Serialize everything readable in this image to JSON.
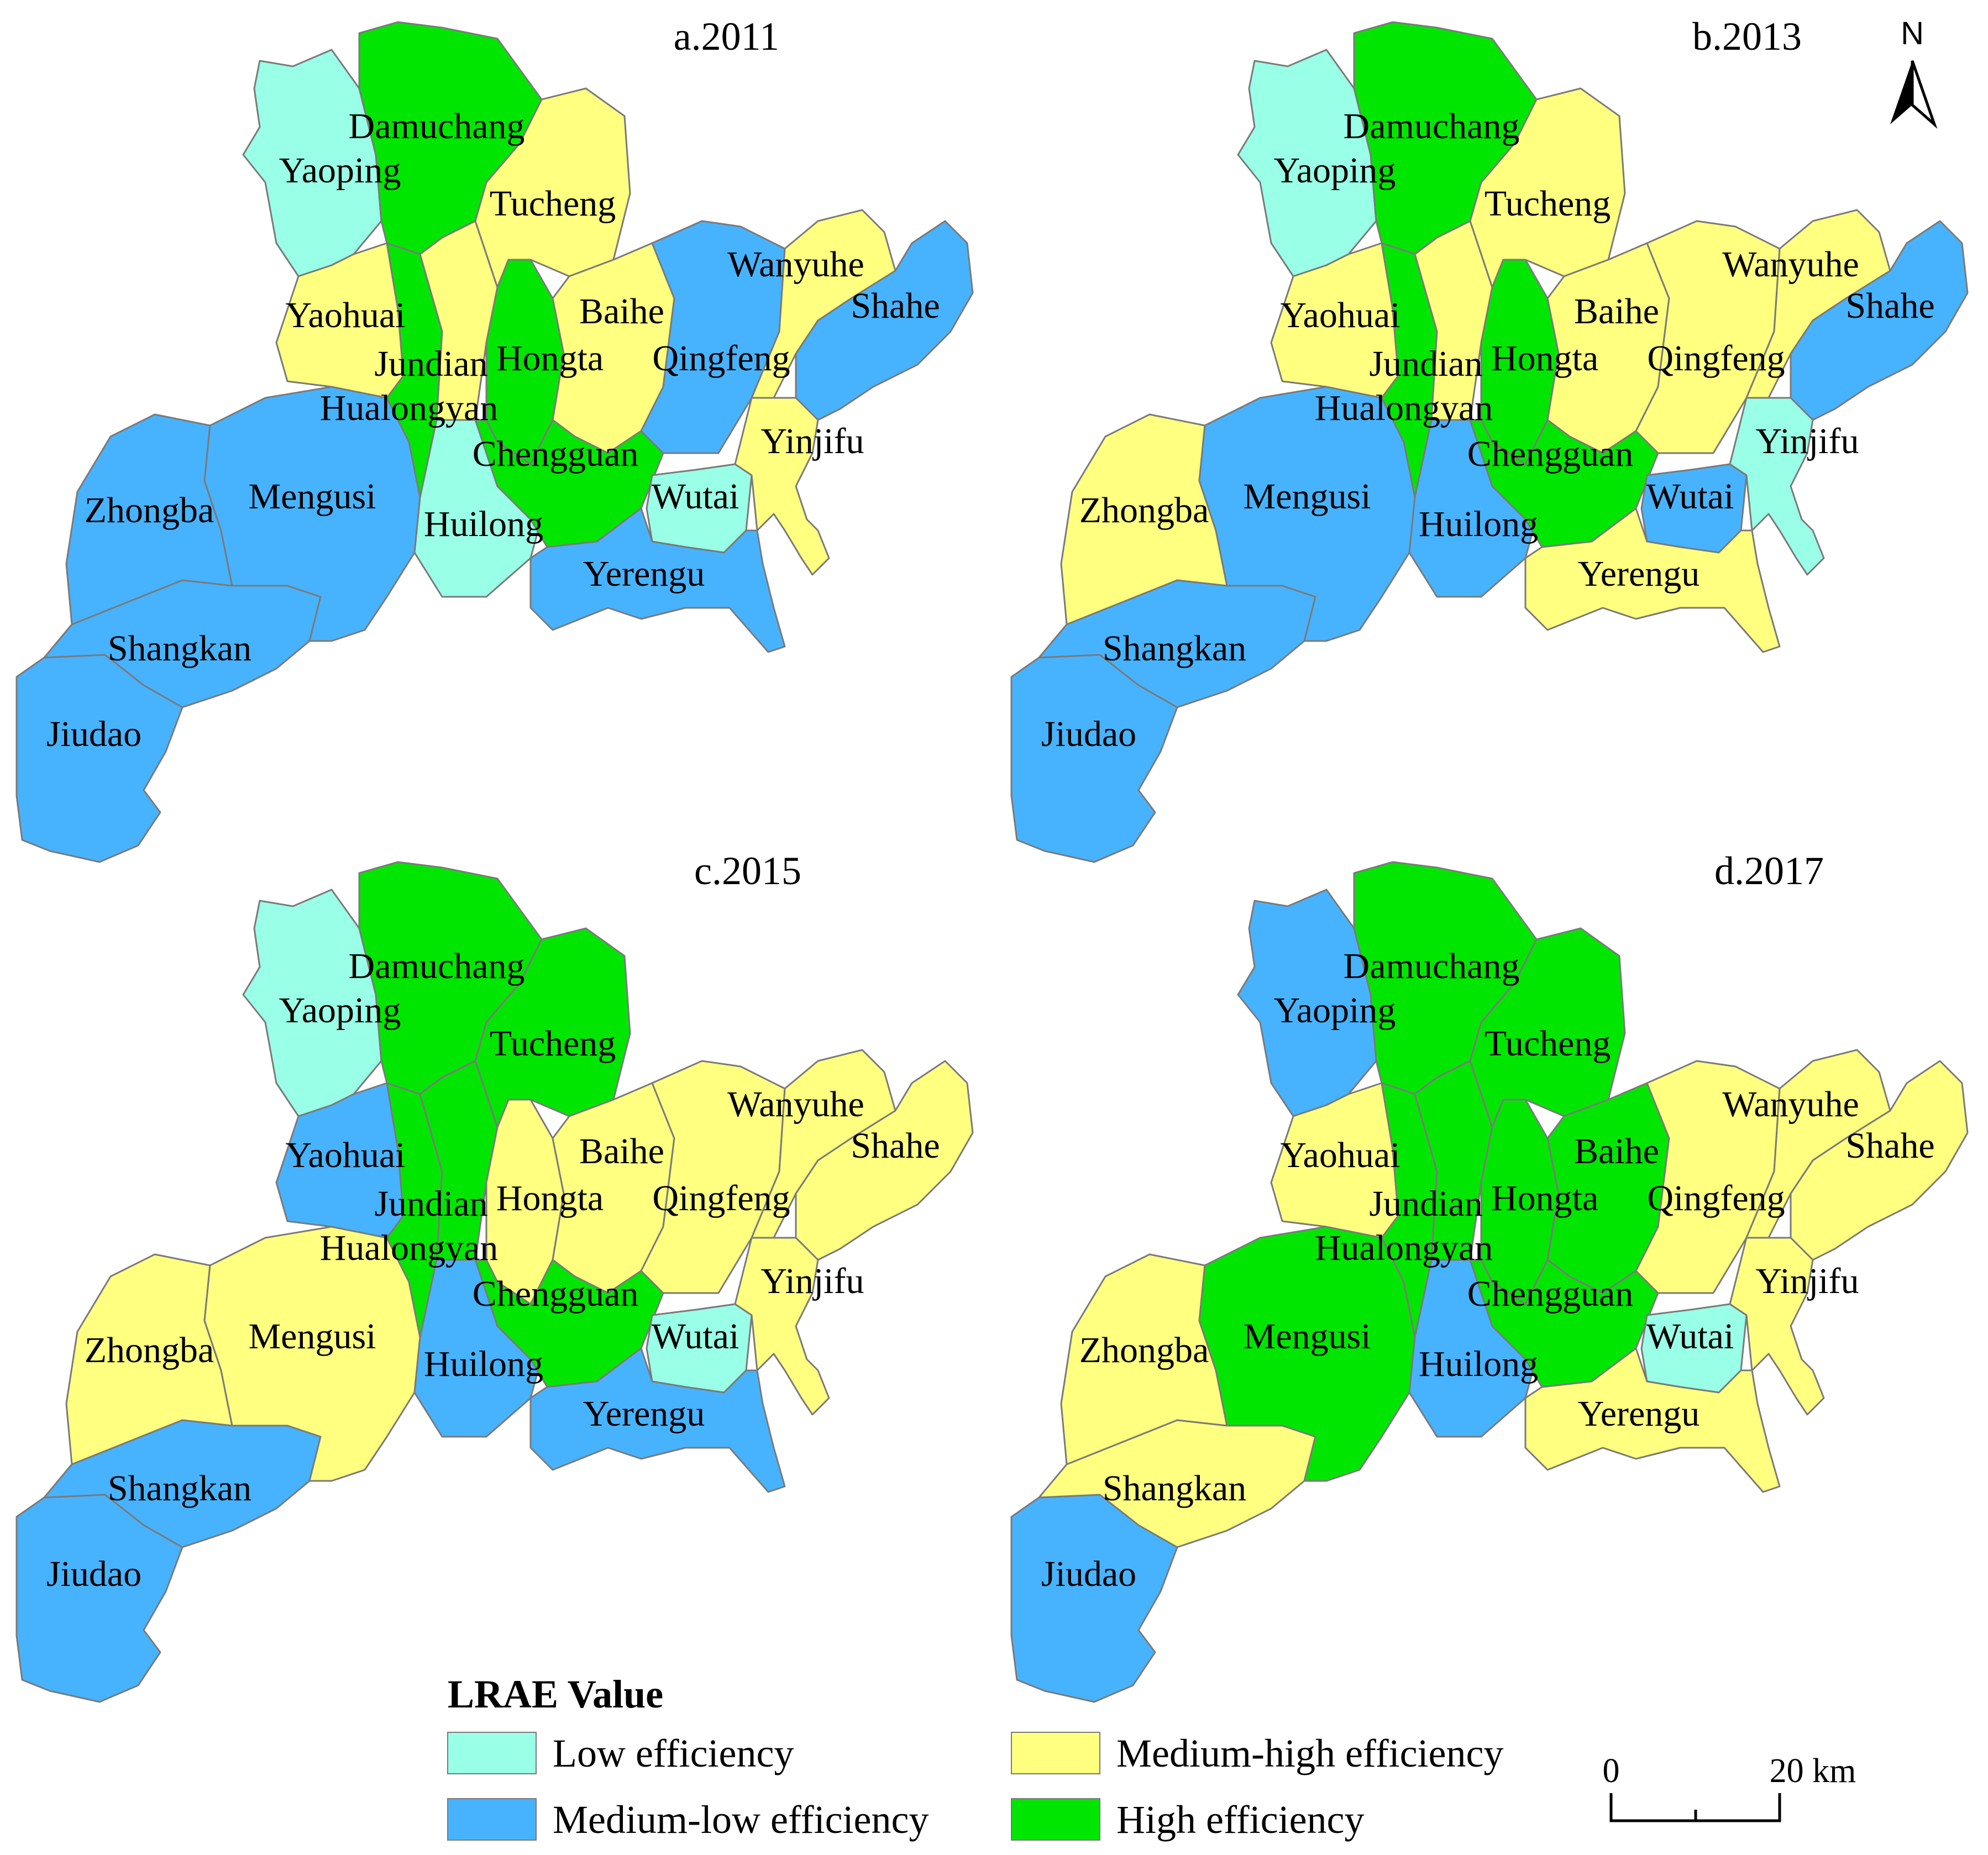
{
  "legend": {
    "title": "LRAE Value",
    "classes": [
      {
        "key": "low",
        "label": "Low efficiency",
        "color": "#99FFE6"
      },
      {
        "key": "medlow",
        "label": "Medium-low efficiency",
        "color": "#47B3FF"
      },
      {
        "key": "medhigh",
        "label": "Medium-high efficiency",
        "color": "#FFFF80"
      },
      {
        "key": "high",
        "label": "High efficiency",
        "color": "#00E600"
      }
    ]
  },
  "north_arrow": {
    "label": "N"
  },
  "scale_bar": {
    "start_label": "0",
    "end_label": "20 km"
  },
  "panels": [
    {
      "title": "a.2011",
      "classes": {
        "Damuchang": "high",
        "Yaoping": "low",
        "Tucheng": "medhigh",
        "Wanyuhe": "medhigh",
        "Shahe": "medlow",
        "Yaohuai": "medhigh",
        "Baihe": "medhigh",
        "Jundian": "high",
        "Hongta": "high",
        "Qingfeng": "medlow",
        "Hualongyan": "medhigh",
        "Chengguan": "high",
        "Yinjifu": "medhigh",
        "Zhongba": "medlow",
        "Mengusi": "medlow",
        "Huilong": "low",
        "Wutai": "low",
        "Yerengu": "medlow",
        "Shangkan": "medlow",
        "Jiudao": "medlow"
      }
    },
    {
      "title": "b.2013",
      "classes": {
        "Damuchang": "high",
        "Yaoping": "low",
        "Tucheng": "medhigh",
        "Wanyuhe": "medhigh",
        "Shahe": "medlow",
        "Yaohuai": "medhigh",
        "Baihe": "medhigh",
        "Jundian": "high",
        "Hongta": "high",
        "Qingfeng": "medhigh",
        "Hualongyan": "medhigh",
        "Chengguan": "high",
        "Yinjifu": "low",
        "Zhongba": "medhigh",
        "Mengusi": "medlow",
        "Huilong": "medlow",
        "Wutai": "medlow",
        "Yerengu": "medhigh",
        "Shangkan": "medlow",
        "Jiudao": "medlow"
      }
    },
    {
      "title": "c.2015",
      "classes": {
        "Damuchang": "high",
        "Yaoping": "low",
        "Tucheng": "high",
        "Wanyuhe": "medhigh",
        "Shahe": "medhigh",
        "Yaohuai": "medlow",
        "Baihe": "medhigh",
        "Jundian": "high",
        "Hongta": "medhigh",
        "Qingfeng": "medhigh",
        "Hualongyan": "high",
        "Chengguan": "high",
        "Yinjifu": "medhigh",
        "Zhongba": "medhigh",
        "Mengusi": "medhigh",
        "Huilong": "medlow",
        "Wutai": "low",
        "Yerengu": "medlow",
        "Shangkan": "medlow",
        "Jiudao": "medlow"
      }
    },
    {
      "title": "d.2017",
      "classes": {
        "Damuchang": "high",
        "Yaoping": "medlow",
        "Tucheng": "high",
        "Wanyuhe": "medhigh",
        "Shahe": "medhigh",
        "Yaohuai": "medhigh",
        "Baihe": "high",
        "Jundian": "high",
        "Hongta": "high",
        "Qingfeng": "medhigh",
        "Hualongyan": "high",
        "Chengguan": "high",
        "Yinjifu": "medhigh",
        "Zhongba": "medhigh",
        "Mengusi": "high",
        "Huilong": "medlow",
        "Wutai": "low",
        "Yerengu": "medhigh",
        "Shangkan": "medhigh",
        "Jiudao": "medlow"
      }
    }
  ]
}
